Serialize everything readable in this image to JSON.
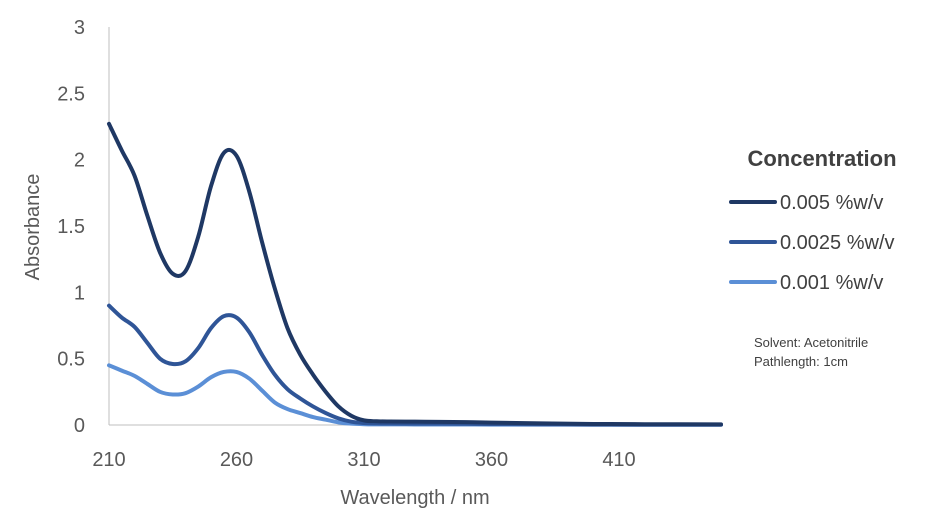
{
  "chart_data": {
    "type": "line",
    "title": "",
    "xlabel": "Wavelength / nm",
    "ylabel": "Absorbance",
    "xlim": [
      210,
      450
    ],
    "ylim": [
      0,
      3
    ],
    "x_ticks": [
      210,
      260,
      310,
      360,
      410
    ],
    "y_ticks": [
      0,
      0.5,
      1,
      1.5,
      2,
      2.5,
      3
    ],
    "y_tick_labels": [
      "0",
      "0.5",
      "1",
      "1.5",
      "2",
      "2.5",
      "3"
    ],
    "grid": false,
    "legend": {
      "title": "Concentration",
      "position": "right"
    },
    "x": [
      210,
      215,
      220,
      225,
      230,
      235,
      240,
      245,
      250,
      255,
      260,
      265,
      270,
      275,
      280,
      285,
      290,
      295,
      300,
      305,
      310,
      315,
      320,
      330,
      340,
      350,
      360,
      380,
      400,
      420,
      450
    ],
    "series": [
      {
        "name": "0.005 %w/v",
        "color": "#1f3864",
        "values": [
          2.27,
          2.07,
          1.88,
          1.58,
          1.3,
          1.14,
          1.16,
          1.42,
          1.8,
          2.05,
          2.03,
          1.76,
          1.38,
          1.03,
          0.73,
          0.53,
          0.38,
          0.25,
          0.14,
          0.07,
          0.035,
          0.028,
          0.026,
          0.025,
          0.024,
          0.022,
          0.018,
          0.012,
          0.008,
          0.006,
          0.005
        ]
      },
      {
        "name": "0.0025 %w/v",
        "color": "#2f5597",
        "values": [
          0.9,
          0.81,
          0.74,
          0.62,
          0.5,
          0.46,
          0.48,
          0.58,
          0.73,
          0.82,
          0.81,
          0.7,
          0.53,
          0.38,
          0.27,
          0.2,
          0.14,
          0.09,
          0.05,
          0.025,
          0.015,
          0.012,
          0.011,
          0.01,
          0.01,
          0.009,
          0.008,
          0.006,
          0.004,
          0.003,
          0.003
        ]
      },
      {
        "name": "0.001 %w/v",
        "color": "#5b8fd6",
        "values": [
          0.45,
          0.41,
          0.37,
          0.31,
          0.25,
          0.23,
          0.24,
          0.29,
          0.36,
          0.4,
          0.4,
          0.35,
          0.26,
          0.17,
          0.12,
          0.09,
          0.06,
          0.04,
          0.02,
          0.01,
          0.006,
          0.005,
          0.005,
          0.004,
          0.004,
          0.004,
          0.003,
          0.003,
          0.002,
          0.002,
          0.002
        ]
      }
    ],
    "annotations": [
      "Solvent: Acetonitrile",
      "Pathlength: 1cm"
    ]
  }
}
